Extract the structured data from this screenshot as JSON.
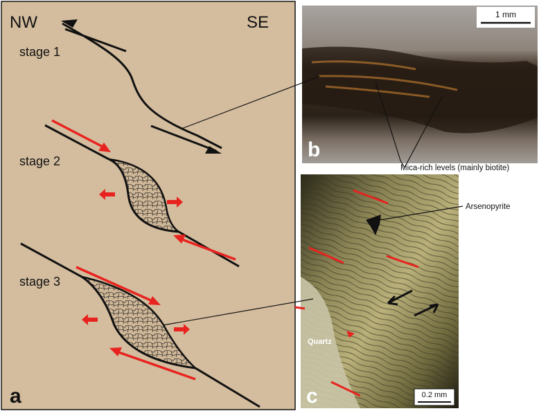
{
  "panel_a": {
    "orientation_left": "NW",
    "orientation_right": "SE",
    "stages": [
      "stage 1",
      "stage 2",
      "stage 3"
    ],
    "letter": "a",
    "background_color": "#d4bd9e",
    "arrow_color": "#e8231f"
  },
  "panel_b": {
    "letter": "b",
    "scale_bar": "1 mm",
    "annotation": "Mica-rich levels (mainly biotite)"
  },
  "panel_c": {
    "letter": "c",
    "scale_bar": "0.2 mm",
    "label_mineral": "Arsenopyrite",
    "label_quartz": "Quartz"
  }
}
